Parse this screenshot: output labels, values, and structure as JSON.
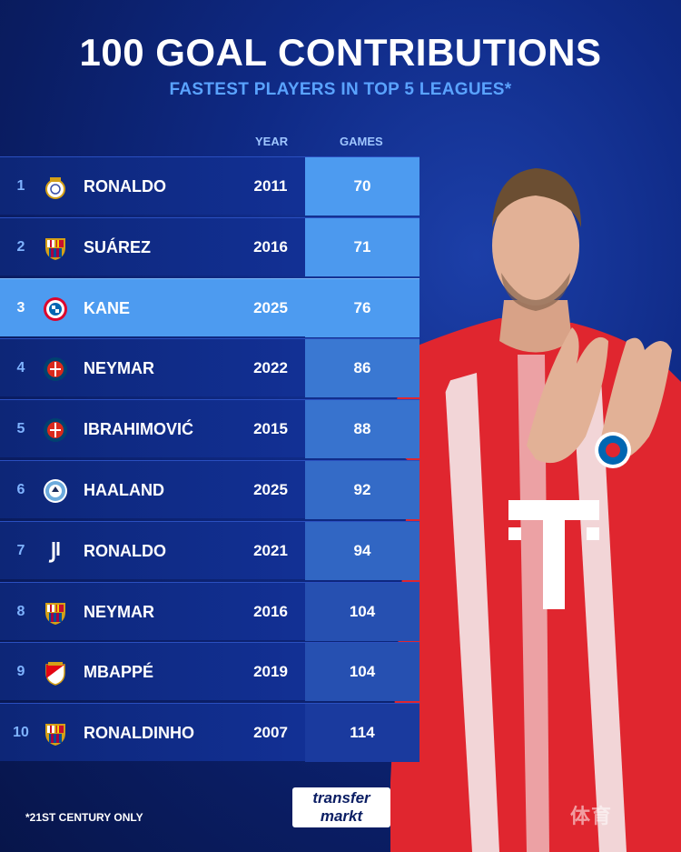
{
  "title": "100 GOAL CONTRIBUTIONS",
  "subtitle": "FASTEST PLAYERS IN TOP 5 LEAGUES*",
  "columns": {
    "year": "YEAR",
    "games": "GAMES"
  },
  "rows": [
    {
      "rank": "1",
      "club": "real-madrid",
      "name": "RONALDO",
      "year": "2011",
      "games": 70,
      "highlight": false
    },
    {
      "rank": "2",
      "club": "barcelona",
      "name": "SUÁREZ",
      "year": "2016",
      "games": 71,
      "highlight": false
    },
    {
      "rank": "3",
      "club": "bayern-munich",
      "name": "KANE",
      "year": "2025",
      "games": 76,
      "highlight": true
    },
    {
      "rank": "4",
      "club": "psg",
      "name": "NEYMAR",
      "year": "2022",
      "games": 86,
      "highlight": false
    },
    {
      "rank": "5",
      "club": "psg",
      "name": "IBRAHIMOVIĆ",
      "year": "2015",
      "games": 88,
      "highlight": false
    },
    {
      "rank": "6",
      "club": "man-city",
      "name": "HAALAND",
      "year": "2025",
      "games": 92,
      "highlight": false
    },
    {
      "rank": "7",
      "club": "juventus",
      "name": "RONALDO",
      "year": "2021",
      "games": 94,
      "highlight": false
    },
    {
      "rank": "8",
      "club": "barcelona",
      "name": "NEYMAR",
      "year": "2016",
      "games": 104,
      "highlight": false
    },
    {
      "rank": "9",
      "club": "monaco",
      "name": "MBAPPÉ",
      "year": "2019",
      "games": 104,
      "highlight": false
    },
    {
      "rank": "10",
      "club": "barcelona",
      "name": "RONALDINHO",
      "year": "2007",
      "games": 114,
      "highlight": false
    }
  ],
  "footnote": "*21ST CENTURY ONLY",
  "logo": {
    "line1": "transfer",
    "line2": "markt"
  },
  "watermark": "体育",
  "colors": {
    "games_light": "#4d9bf0",
    "games_dark": "#1a3a9e",
    "highlight_row": "#4d9bf0"
  }
}
